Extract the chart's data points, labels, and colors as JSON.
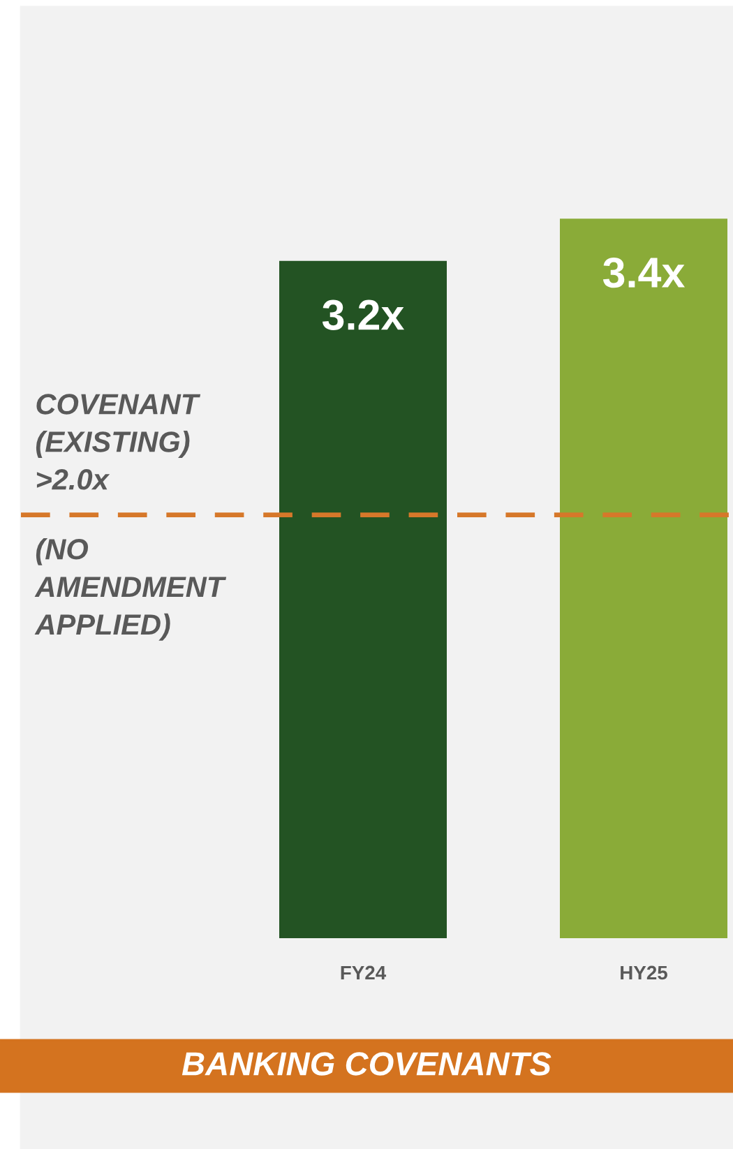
{
  "chart_data": {
    "type": "bar",
    "title": "BANKING COVENANTS",
    "categories": [
      "FY24",
      "HY25"
    ],
    "values": [
      3.2,
      3.4
    ],
    "colors": [
      "#235323",
      "#8aab38"
    ],
    "value_labels": [
      "3.2x",
      "3.4x"
    ],
    "ylim": [
      0,
      4.4
    ],
    "tick_labels": "x",
    "grid": false,
    "legend": false,
    "ref_lines": [
      {
        "axis": "y",
        "value": 2.0,
        "label": "COVENANT\n(EXISTING)\n>2.0x",
        "color": "#d6782a",
        "line_style": "dashed"
      }
    ],
    "annotations": [
      "(NO\nAMENDMENT\nAPPLIED)"
    ]
  }
}
